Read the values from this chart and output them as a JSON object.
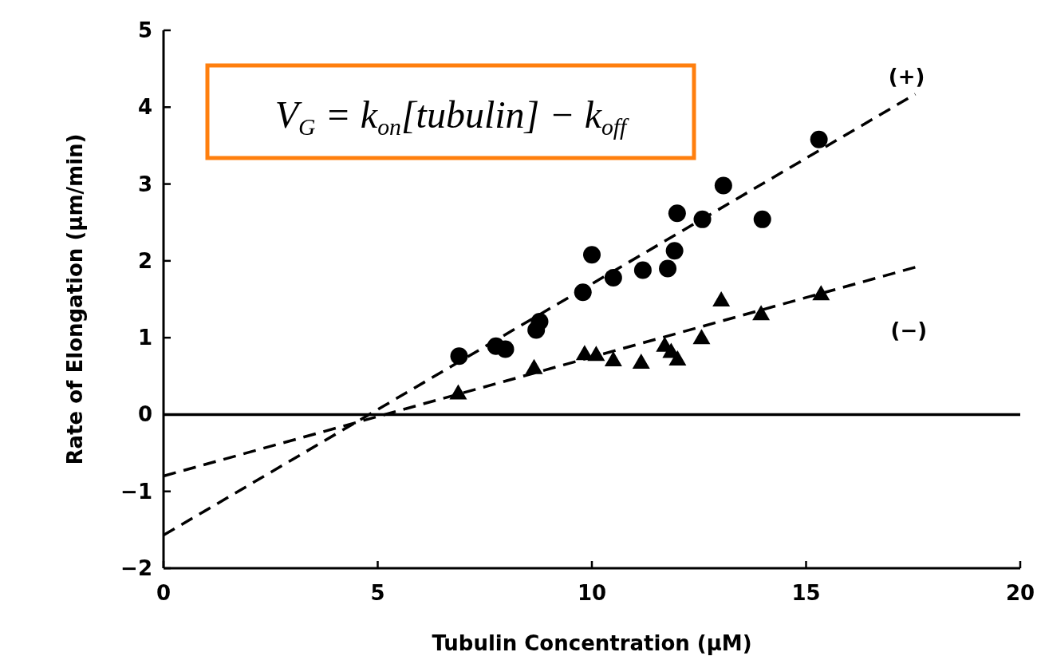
{
  "chart_data": {
    "type": "scatter",
    "xlabel": "Tubulin Concentration (μM)",
    "ylabel": "Rate of Elongation (μm/min)",
    "xlim": [
      0,
      20
    ],
    "xticks": [
      0,
      5,
      10,
      15,
      20
    ],
    "ylim": [
      -2,
      5
    ],
    "yticks": [
      -2,
      -1,
      0,
      1,
      2,
      3,
      4,
      5
    ],
    "grid": false,
    "series": [
      {
        "name": "(+)",
        "marker": "circle",
        "color": "#000000",
        "x": [
          6.9,
          7.76,
          7.98,
          8.7,
          8.78,
          9.79,
          10.0,
          10.5,
          11.19,
          11.77,
          11.93,
          11.99,
          12.58,
          13.07,
          13.98,
          15.3
        ],
        "values": [
          0.76,
          0.89,
          0.85,
          1.1,
          1.21,
          1.59,
          2.08,
          1.78,
          1.88,
          1.9,
          2.13,
          2.62,
          2.54,
          2.98,
          2.54,
          3.58
        ]
      },
      {
        "name": "(−)",
        "marker": "triangle",
        "color": "#000000",
        "x": [
          6.88,
          8.65,
          9.83,
          10.1,
          10.5,
          11.15,
          11.7,
          11.85,
          12.0,
          12.56,
          13.02,
          13.95,
          15.35
        ],
        "values": [
          0.28,
          0.61,
          0.79,
          0.78,
          0.71,
          0.68,
          0.9,
          0.82,
          0.72,
          1.0,
          1.49,
          1.31,
          1.57
        ]
      },
      {
        "type": "line",
        "line_style": "dashed",
        "marker": "none",
        "color": "#000000",
        "x": [
          0,
          17.55
        ],
        "values": [
          -1.57,
          4.17
        ]
      },
      {
        "type": "line",
        "line_style": "dashed",
        "marker": "none",
        "color": "#000000",
        "x": [
          0,
          17.57
        ],
        "values": [
          -0.8,
          1.92
        ]
      }
    ],
    "ref_lines": [
      {
        "axis": "y",
        "value": 0,
        "color": "#000000",
        "line_style": "solid"
      }
    ],
    "annotations": [
      {
        "text": "V$_{G}$ = k$_{on}$[tubulin] − k$_{off}$"
      }
    ]
  }
}
